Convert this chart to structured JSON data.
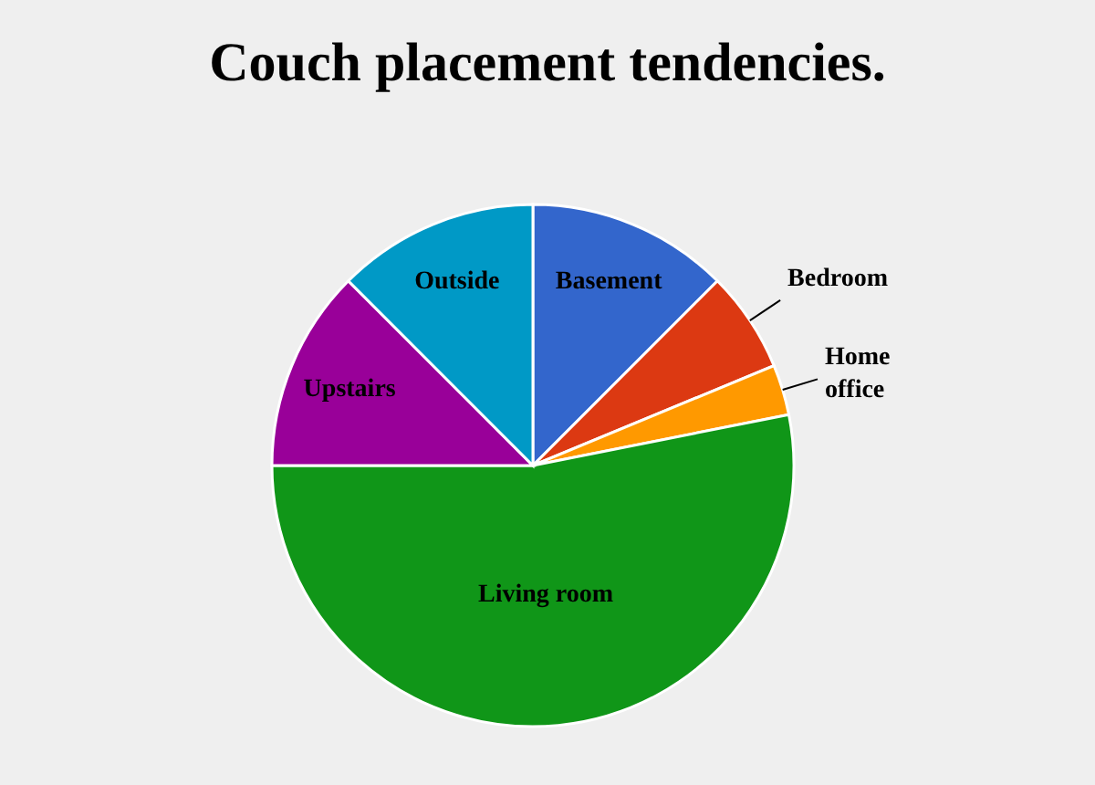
{
  "chart_data": {
    "type": "pie",
    "title": "Couch placement tendencies.",
    "categories": [
      "Basement",
      "Bedroom",
      "Home office",
      "Living room",
      "Upstairs",
      "Outside"
    ],
    "values": [
      12.5,
      6.25,
      3.125,
      53.125,
      12.5,
      12.5
    ],
    "colors": [
      "#3366cc",
      "#dc3912",
      "#ff9900",
      "#109618",
      "#990099",
      "#0099c6"
    ],
    "legend": false
  }
}
